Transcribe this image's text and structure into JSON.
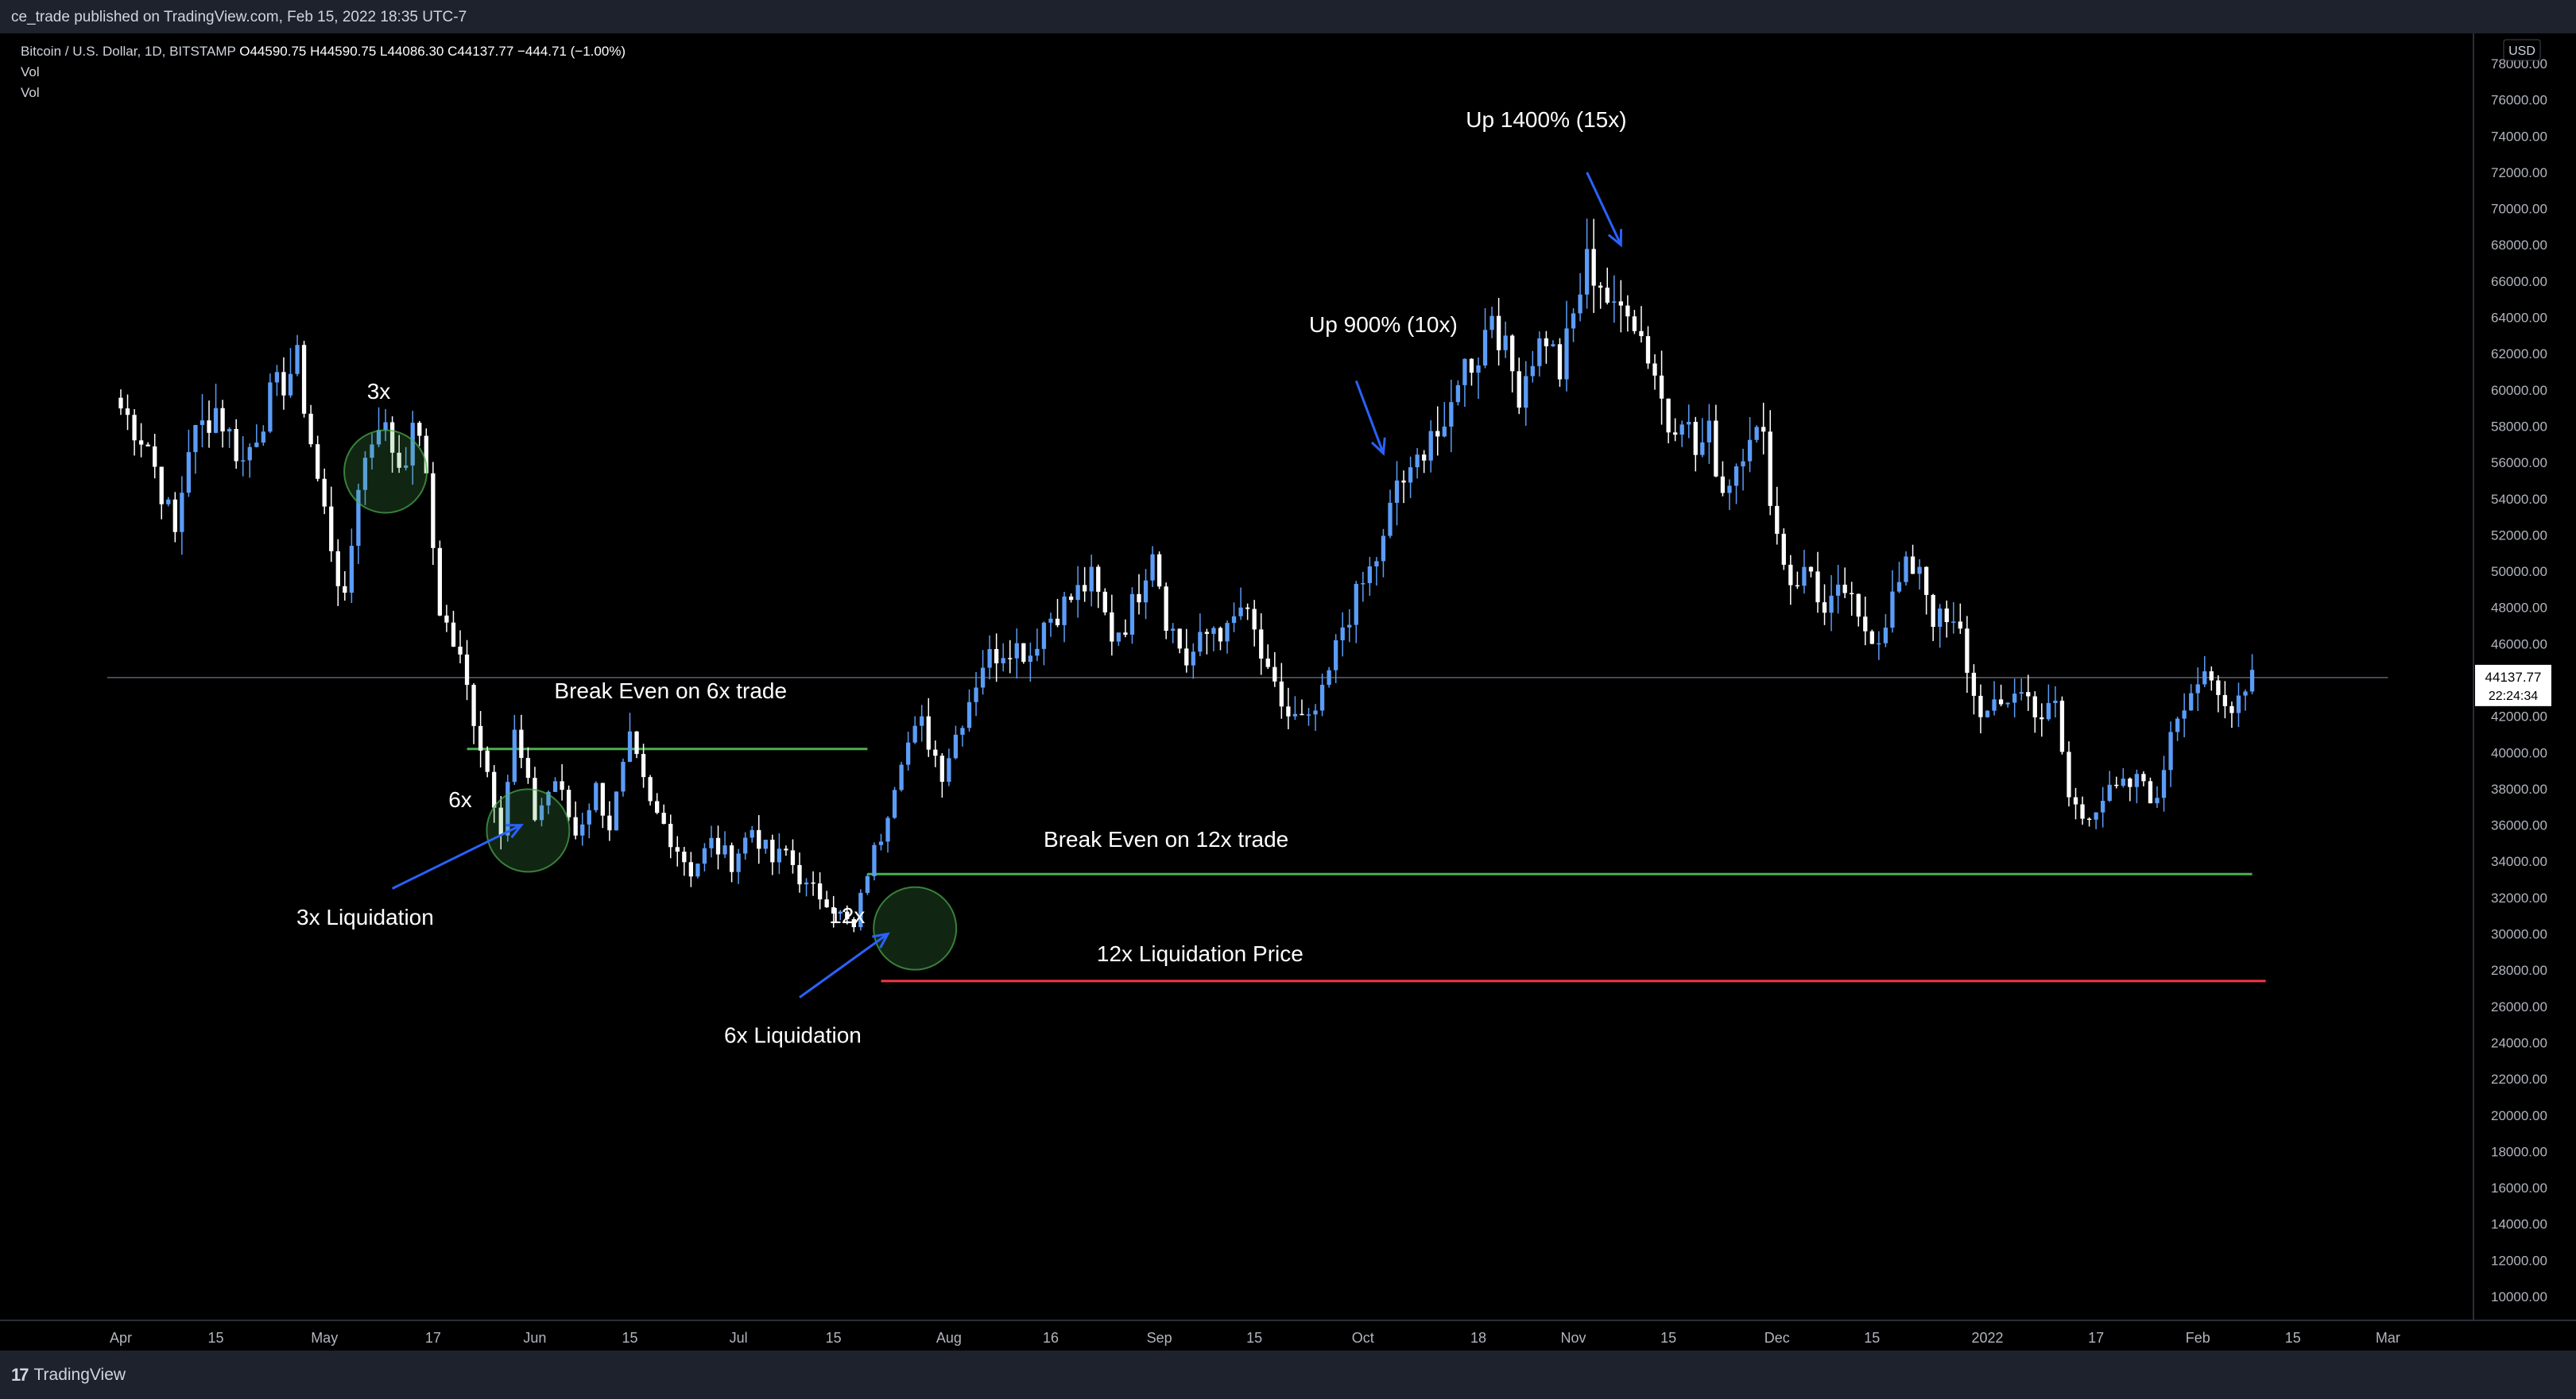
{
  "header": {
    "publisher": "ce_trade published on TradingView.com, Feb 15, 2022 18:35 UTC-7"
  },
  "legend": {
    "symbol": "Bitcoin / U.S. Dollar, 1D, BITSTAMP",
    "ohlc": "O44590.75 H44590.75 L44086.30 C44137.77 −444.71 (−1.00%)",
    "indicators": [
      "Vol",
      "Vol"
    ]
  },
  "footer": {
    "brand": "TradingView"
  },
  "colors": {
    "background": "#000000",
    "up_candle": "#5b9cf6",
    "down_candle": "#ffffff",
    "green_line": "#4caf50",
    "red_line": "#f23645",
    "arrow": "#2962ff",
    "annotation_text": "#ffffff"
  },
  "chart_data": {
    "type": "candlestick",
    "symbol": "Bitcoin / U.S. Dollar",
    "interval": "1D",
    "exchange": "BITSTAMP",
    "currency": "USD",
    "ylim": [
      8000,
      79000
    ],
    "y_ticks": [
      "78000.00",
      "76000.00",
      "74000.00",
      "72000.00",
      "70000.00",
      "68000.00",
      "66000.00",
      "64000.00",
      "62000.00",
      "60000.00",
      "58000.00",
      "56000.00",
      "54000.00",
      "52000.00",
      "50000.00",
      "48000.00",
      "46000.00",
      "44000.00",
      "42000.00",
      "40000.00",
      "38000.00",
      "36000.00",
      "34000.00",
      "32000.00",
      "30000.00",
      "28000.00",
      "26000.00",
      "24000.00",
      "22000.00",
      "20000.00",
      "18000.00",
      "16000.00",
      "14000.00",
      "12000.00",
      "10000.00"
    ],
    "x_ticks": [
      "Apr",
      "15",
      "May",
      "17",
      "Jun",
      "15",
      "Jul",
      "15",
      "Aug",
      "16",
      "Sep",
      "15",
      "Oct",
      "18",
      "Nov",
      "15",
      "Dec",
      "15",
      "2022",
      "17",
      "Feb",
      "15",
      "Mar"
    ],
    "x_tick_days": [
      0,
      14,
      30,
      46,
      61,
      75,
      91,
      105,
      122,
      137,
      153,
      167,
      183,
      200,
      214,
      228,
      244,
      258,
      275,
      291,
      306,
      320,
      334
    ],
    "price_anchors": [
      [
        0,
        59000
      ],
      [
        4,
        57000
      ],
      [
        8,
        52000
      ],
      [
        10,
        57000
      ],
      [
        14,
        59000
      ],
      [
        18,
        56000
      ],
      [
        22,
        59500
      ],
      [
        26,
        61500
      ],
      [
        29,
        55000
      ],
      [
        33,
        48000
      ],
      [
        35,
        55000
      ],
      [
        38,
        58500
      ],
      [
        41,
        56000
      ],
      [
        44,
        58000
      ],
      [
        47,
        48000
      ],
      [
        50,
        45000
      ],
      [
        53,
        40500
      ],
      [
        56,
        36000
      ],
      [
        58,
        41000
      ],
      [
        61,
        36500
      ],
      [
        64,
        38500
      ],
      [
        67,
        35500
      ],
      [
        70,
        38000
      ],
      [
        72,
        36000
      ],
      [
        75,
        40500
      ],
      [
        78,
        37000
      ],
      [
        80,
        36000
      ],
      [
        84,
        33500
      ],
      [
        87,
        35000
      ],
      [
        90,
        34000
      ],
      [
        93,
        35800
      ],
      [
        96,
        34000
      ],
      [
        98,
        34500
      ],
      [
        101,
        32500
      ],
      [
        104,
        32000
      ],
      [
        106,
        31000
      ],
      [
        108,
        30200
      ],
      [
        110,
        33500
      ],
      [
        112,
        35500
      ],
      [
        115,
        40000
      ],
      [
        118,
        41500
      ],
      [
        121,
        39000
      ],
      [
        124,
        42000
      ],
      [
        127,
        45000
      ],
      [
        131,
        46000
      ],
      [
        134,
        45500
      ],
      [
        136,
        47200
      ],
      [
        140,
        48500
      ],
      [
        143,
        49500
      ],
      [
        146,
        46500
      ],
      [
        148,
        47200
      ],
      [
        150,
        49000
      ],
      [
        152,
        51500
      ],
      [
        154,
        47500
      ],
      [
        157,
        45000
      ],
      [
        161,
        47000
      ],
      [
        163,
        46500
      ],
      [
        165,
        48000
      ],
      [
        167,
        46500
      ],
      [
        169,
        44000
      ],
      [
        172,
        42000
      ],
      [
        175,
        41500
      ],
      [
        177,
        43000
      ],
      [
        180,
        47000
      ],
      [
        182,
        48500
      ],
      [
        184,
        50000
      ],
      [
        186,
        51500
      ],
      [
        188,
        55000
      ],
      [
        190,
        55000
      ],
      [
        193,
        58000
      ],
      [
        195,
        57000
      ],
      [
        197,
        61000
      ],
      [
        200,
        62000
      ],
      [
        202,
        64500
      ],
      [
        204,
        62000
      ],
      [
        206,
        60000
      ],
      [
        208,
        62000
      ],
      [
        210,
        63000
      ],
      [
        212,
        61000
      ],
      [
        214,
        64000
      ],
      [
        216,
        67000
      ],
      [
        218,
        66000
      ],
      [
        220,
        64000
      ],
      [
        222,
        65000
      ],
      [
        224,
        63000
      ],
      [
        226,
        61000
      ],
      [
        228,
        58000
      ],
      [
        230,
        59000
      ],
      [
        232,
        56500
      ],
      [
        234,
        57500
      ],
      [
        236,
        54500
      ],
      [
        238,
        56000
      ],
      [
        240,
        58000
      ],
      [
        242,
        57000
      ],
      [
        244,
        52000
      ],
      [
        246,
        49500
      ],
      [
        249,
        50000
      ],
      [
        251,
        47500
      ],
      [
        254,
        49000
      ],
      [
        256,
        47000
      ],
      [
        259,
        46500
      ],
      [
        261,
        48500
      ],
      [
        263,
        50000
      ],
      [
        265,
        50500
      ],
      [
        267,
        47500
      ],
      [
        269,
        47000
      ],
      [
        271,
        46500
      ],
      [
        273,
        43000
      ],
      [
        275,
        42000
      ],
      [
        277,
        42500
      ],
      [
        279,
        43500
      ],
      [
        281,
        43000
      ],
      [
        283,
        42000
      ],
      [
        285,
        42500
      ],
      [
        287,
        37500
      ],
      [
        289,
        36500
      ],
      [
        292,
        37500
      ],
      [
        295,
        38000
      ],
      [
        298,
        38500
      ],
      [
        300,
        37000
      ],
      [
        302,
        41500
      ],
      [
        304,
        43000
      ],
      [
        306,
        44000
      ],
      [
        308,
        43500
      ],
      [
        310,
        42500
      ],
      [
        312,
        43200
      ],
      [
        314,
        44590
      ]
    ],
    "last_price": "44137.77",
    "countdown": "22:24:34",
    "horizontal_lines": [
      {
        "name": "break-even-6x",
        "price": 40200,
        "color": "#4caf50",
        "from_day": 51,
        "to_day": 110
      },
      {
        "name": "break-even-12x",
        "price": 33300,
        "color": "#4caf50",
        "from_day": 110,
        "to_day": 314
      },
      {
        "name": "liquidation-12x",
        "price": 27400,
        "color": "#f23645",
        "from_day": 112,
        "to_day": 316
      },
      {
        "name": "current-price",
        "price": 44137.77,
        "color": "#5d606b",
        "from_day": -2,
        "to_day": 334
      }
    ],
    "annotations": [
      {
        "text": "3x",
        "day": 38,
        "price": 59500
      },
      {
        "text": "Break Even on 6x trade",
        "day": 81,
        "price": 43000
      },
      {
        "text": "6x",
        "day": 50,
        "price": 37000
      },
      {
        "text": "3x Liquidation",
        "day": 36,
        "price": 30500
      },
      {
        "text": "12x",
        "day": 107,
        "price": 30600
      },
      {
        "text": "6x Liquidation",
        "day": 99,
        "price": 24000
      },
      {
        "text": "Break Even on 12x trade",
        "day": 154,
        "price": 34800
      },
      {
        "text": "12x Liquidation Price",
        "day": 159,
        "price": 28500
      },
      {
        "text": "Up 900% (10x)",
        "day": 186,
        "price": 63200
      },
      {
        "text": "Up 1400% (15x)",
        "day": 210,
        "price": 74500
      }
    ],
    "circles": [
      {
        "name": "entry-3x",
        "day": 39,
        "price": 55500
      },
      {
        "name": "entry-6x",
        "day": 60,
        "price": 35700
      },
      {
        "name": "entry-12x",
        "day": 117,
        "price": 30300
      }
    ],
    "arrows": [
      {
        "name": "arrow-3x-liquidation",
        "from_day": 40,
        "from_price": 32500,
        "to_day": 59,
        "to_price": 36000
      },
      {
        "name": "arrow-6x-liquidation",
        "from_day": 100,
        "from_price": 26500,
        "to_day": 113,
        "to_price": 30000
      },
      {
        "name": "arrow-up-900",
        "from_day": 182,
        "from_price": 60500,
        "to_day": 186,
        "to_price": 56500
      },
      {
        "name": "arrow-up-1400",
        "from_day": 216,
        "from_price": 72000,
        "to_day": 221,
        "to_price": 68000
      }
    ]
  }
}
